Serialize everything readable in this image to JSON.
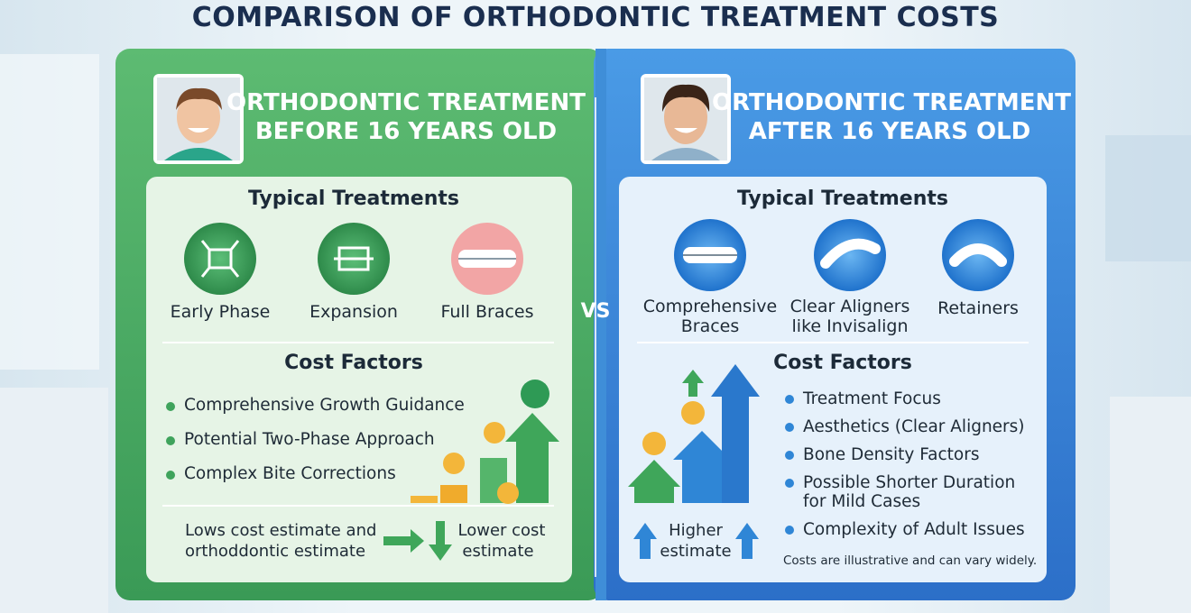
{
  "title": "COMPARISON OF ORTHODONTIC TREATMENT COSTS",
  "vs": "VS",
  "panels": [
    {
      "heading": [
        "ORTHODONTIC TREATMENT",
        "BEFORE 16 YEARS OLD"
      ],
      "treatments_title": "Typical Treatments",
      "treatments": [
        [
          "Early Phase"
        ],
        [
          "Expansion"
        ],
        [
          "Full Braces"
        ]
      ],
      "cost_title": "Cost Factors",
      "factors": [
        [
          "Comprehensive Growth Guidance"
        ],
        [
          "Potential Two-Phase Approach"
        ],
        [
          "Complex Bite Corrections"
        ]
      ],
      "estimate": {
        "left": [
          "Lows cost estimate and",
          "orthoddontic estimate"
        ],
        "right": [
          "Lower cost",
          "estimate"
        ]
      }
    },
    {
      "heading": [
        "ORTHODONTIC TREATMENT",
        "AFTER 16 YEARS OLD"
      ],
      "treatments_title": "Typical Treatments",
      "treatments": [
        [
          "Comprehensive",
          "Braces"
        ],
        [
          "Clear Aligners",
          "like Invisalign"
        ],
        [
          "Retainers"
        ]
      ],
      "cost_title": "Cost Factors",
      "factors": [
        [
          "Treatment Focus"
        ],
        [
          "Aesthetics (Clear Aligners)"
        ],
        [
          "Bone Density Factors"
        ],
        [
          "Possible Shorter Duration",
          "for Mild Cases"
        ],
        [
          "Complexity of Adult Issues"
        ]
      ],
      "estimate": {
        "left": [
          "Higher",
          "estimate"
        ]
      },
      "note": "Costs are illustrative and can vary widely."
    }
  ]
}
